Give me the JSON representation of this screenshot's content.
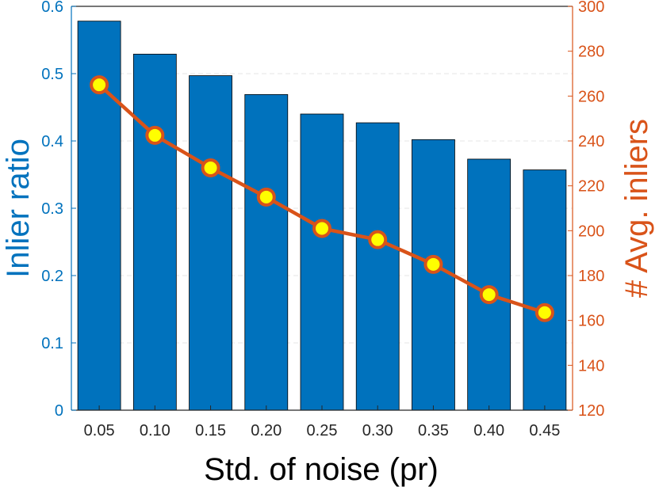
{
  "chart_data": {
    "type": "bar+line",
    "categories": [
      "0.05",
      "0.10",
      "0.15",
      "0.20",
      "0.25",
      "0.30",
      "0.35",
      "0.40",
      "0.45"
    ],
    "series": [
      {
        "name": "Inlier ratio",
        "type": "bar",
        "axis": "left",
        "values": [
          0.578,
          0.529,
          0.497,
          0.469,
          0.44,
          0.427,
          0.402,
          0.373,
          0.357
        ],
        "color": "#0072BD"
      },
      {
        "name": "# Avg. inliers",
        "type": "line",
        "axis": "right",
        "values": [
          265,
          242.5,
          228,
          215,
          201,
          196,
          185,
          171.5,
          163.5
        ],
        "color": "#D95319",
        "marker_color": "#FFFF00"
      }
    ],
    "xlabel": "Std. of noise (pr)",
    "ylabel_left": "Inlier ratio",
    "ylabel_right": "# Avg. inliers",
    "ylim_left": [
      0,
      0.6
    ],
    "ylim_right": [
      120,
      300
    ],
    "yticks_left": [
      "0",
      "0.1",
      "0.2",
      "0.3",
      "0.4",
      "0.5",
      "0.6"
    ],
    "yticks_right": [
      "120",
      "140",
      "160",
      "180",
      "200",
      "220",
      "240",
      "260",
      "280",
      "300"
    ],
    "grid": true,
    "left_axis_color": "#0072BD",
    "right_axis_color": "#D95319"
  }
}
